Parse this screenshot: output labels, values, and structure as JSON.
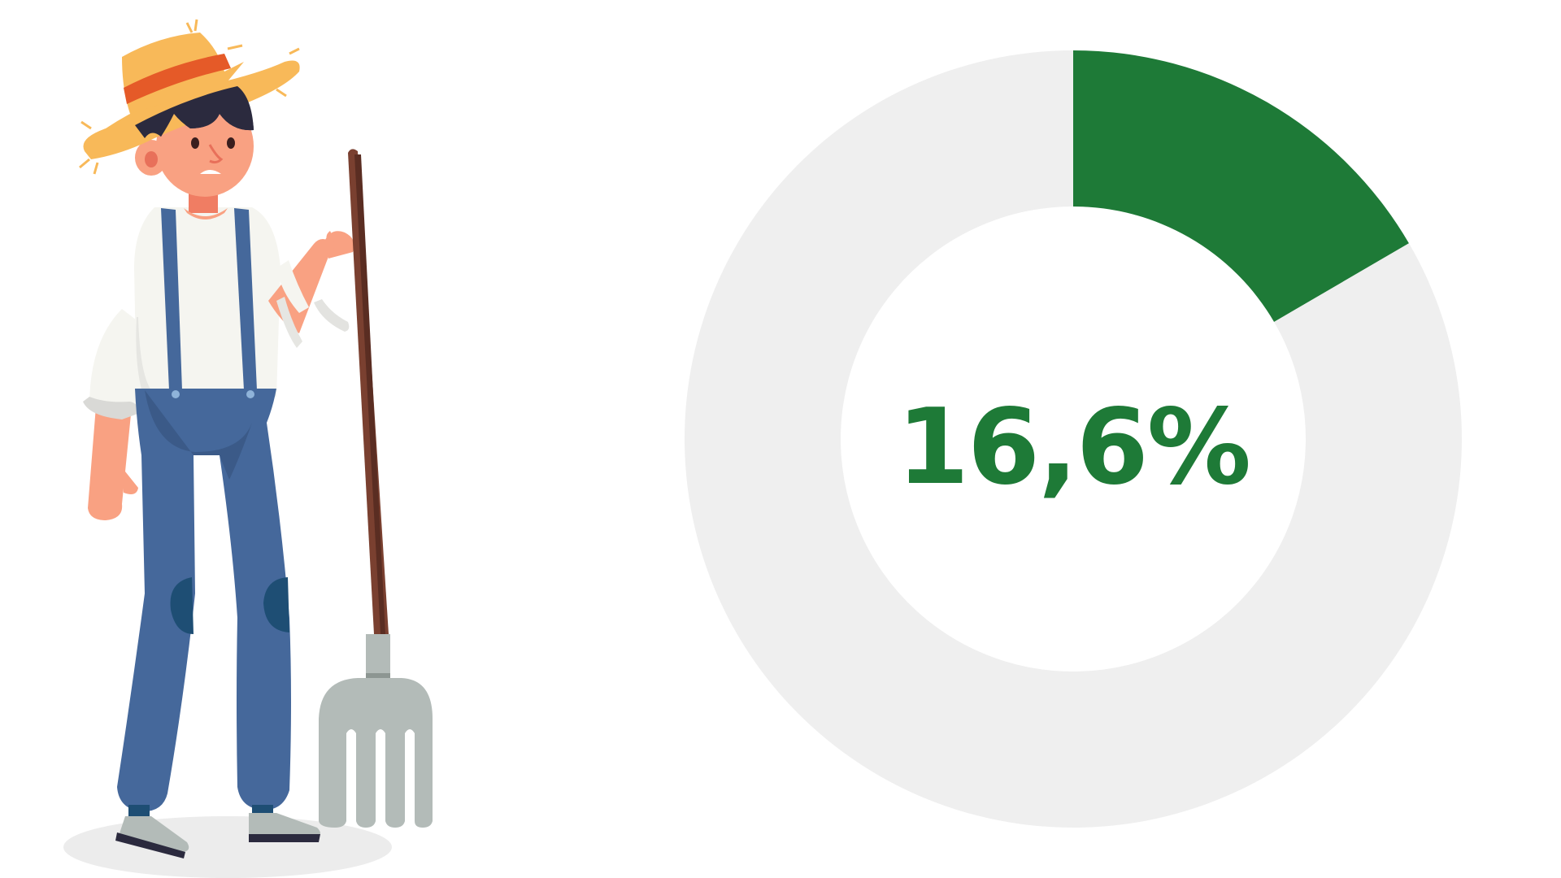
{
  "chart_data": {
    "type": "pie",
    "variant": "donut",
    "title": "",
    "center_label": "16,6%",
    "values": [
      16.6,
      83.4
    ],
    "colors": [
      "#1e7a37",
      "#efefef"
    ]
  },
  "colors": {
    "label": "#1e7a37",
    "background": "#ffffff"
  },
  "illustration": {
    "subject": "farmer-with-pitchfork"
  }
}
